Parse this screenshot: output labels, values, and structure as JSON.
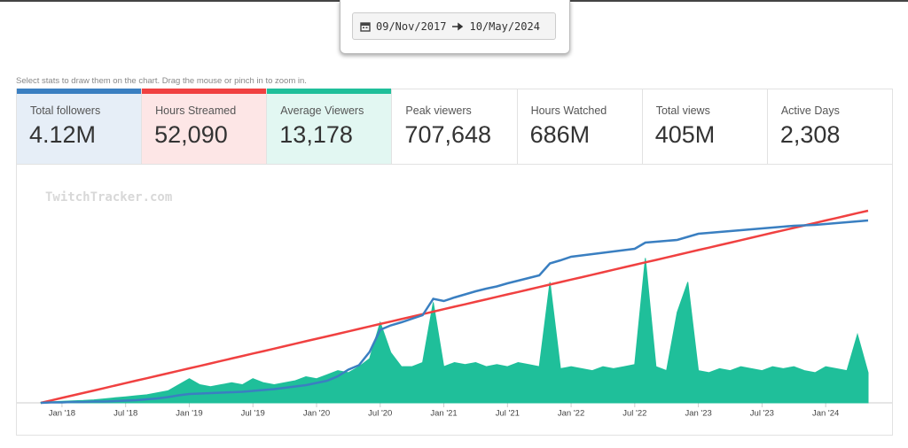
{
  "date_range": {
    "start": "09/Nov/2017",
    "end": "10/May/2024"
  },
  "instructions": "Select stats to draw them on the chart. Drag the mouse or pinch in to zoom in.",
  "stats": [
    {
      "label": "Total followers",
      "value": "4.12M",
      "color": "#3a7fc1",
      "selected": true
    },
    {
      "label": "Hours Streamed",
      "value": "52,090",
      "color": "#f04141",
      "selected": true
    },
    {
      "label": "Average Viewers",
      "value": "13,178",
      "color": "#1fbf9a",
      "selected": true
    },
    {
      "label": "Peak viewers",
      "value": "707,648",
      "selected": false
    },
    {
      "label": "Hours Watched",
      "value": "686M",
      "selected": false
    },
    {
      "label": "Total views",
      "value": "405M",
      "selected": false
    },
    {
      "label": "Active Days",
      "value": "2,308",
      "selected": false
    }
  ],
  "chart_data": {
    "type": "line",
    "watermark": "TwitchTracker.com",
    "x": [
      "2017-11",
      "2017-12",
      "2018-01",
      "2018-02",
      "2018-03",
      "2018-04",
      "2018-05",
      "2018-06",
      "2018-07",
      "2018-08",
      "2018-09",
      "2018-10",
      "2018-11",
      "2018-12",
      "2019-01",
      "2019-02",
      "2019-03",
      "2019-04",
      "2019-05",
      "2019-06",
      "2019-07",
      "2019-08",
      "2019-09",
      "2019-10",
      "2019-11",
      "2019-12",
      "2020-01",
      "2020-02",
      "2020-03",
      "2020-04",
      "2020-05",
      "2020-06",
      "2020-07",
      "2020-08",
      "2020-09",
      "2020-10",
      "2020-11",
      "2020-12",
      "2021-01",
      "2021-02",
      "2021-03",
      "2021-04",
      "2021-05",
      "2021-06",
      "2021-07",
      "2021-08",
      "2021-09",
      "2021-10",
      "2021-11",
      "2021-12",
      "2022-01",
      "2022-02",
      "2022-03",
      "2022-04",
      "2022-05",
      "2022-06",
      "2022-07",
      "2022-08",
      "2022-09",
      "2022-10",
      "2022-11",
      "2022-12",
      "2023-01",
      "2023-02",
      "2023-03",
      "2023-04",
      "2023-05",
      "2023-06",
      "2023-07",
      "2023-08",
      "2023-09",
      "2023-10",
      "2023-11",
      "2023-12",
      "2024-01",
      "2024-02",
      "2024-03",
      "2024-04",
      "2024-05"
    ],
    "xlim": [
      "2017-11",
      "2024-05"
    ],
    "xticks": [
      {
        "value": "2018-01",
        "label": "Jan '18"
      },
      {
        "value": "2018-07",
        "label": "Jul '18"
      },
      {
        "value": "2019-01",
        "label": "Jan '19"
      },
      {
        "value": "2019-07",
        "label": "Jul '19"
      },
      {
        "value": "2020-01",
        "label": "Jan '20"
      },
      {
        "value": "2020-07",
        "label": "Jul '20"
      },
      {
        "value": "2021-01",
        "label": "Jan '21"
      },
      {
        "value": "2021-07",
        "label": "Jul '21"
      },
      {
        "value": "2022-01",
        "label": "Jan '22"
      },
      {
        "value": "2022-07",
        "label": "Jul '22"
      },
      {
        "value": "2023-01",
        "label": "Jan '23"
      },
      {
        "value": "2023-07",
        "label": "Jul '23"
      },
      {
        "value": "2024-01",
        "label": "Jan '24"
      }
    ],
    "series": [
      {
        "type": "area",
        "color": "#1fbf9a",
        "ylim": [
          0,
          110000
        ],
        "values": [
          200,
          500,
          800,
          1000,
          1200,
          1500,
          2000,
          2500,
          3000,
          3500,
          4000,
          5000,
          6000,
          9000,
          12000,
          9000,
          8000,
          9000,
          10000,
          9000,
          12000,
          10000,
          9000,
          10000,
          11000,
          13000,
          12000,
          14000,
          16000,
          15000,
          18000,
          22000,
          40000,
          25000,
          18000,
          18000,
          20000,
          50000,
          18000,
          20000,
          19000,
          20000,
          18000,
          19000,
          18000,
          20000,
          19000,
          18000,
          60000,
          17000,
          18000,
          17000,
          16000,
          18000,
          17000,
          18000,
          19000,
          72000,
          18000,
          16000,
          45000,
          60000,
          16000,
          15000,
          17000,
          16000,
          18000,
          17000,
          16000,
          18000,
          17000,
          18000,
          16000,
          15000,
          18000,
          17000,
          16000,
          34000,
          15000
        ]
      },
      {
        "type": "line",
        "color": "#f04141",
        "ylim": [
          0,
          60000
        ],
        "values": [
          0,
          668,
          1336,
          2004,
          2672,
          3340,
          4008,
          4676,
          5344,
          6012,
          6680,
          7348,
          8016,
          8684,
          9352,
          10020,
          10688,
          11356,
          12024,
          12692,
          13360,
          14028,
          14696,
          15364,
          16032,
          16700,
          17368,
          18036,
          18704,
          19372,
          20040,
          20708,
          21376,
          22044,
          22712,
          23380,
          24048,
          24716,
          25384,
          26052,
          26720,
          27388,
          28056,
          28724,
          29392,
          30060,
          30728,
          31396,
          32064,
          32732,
          33400,
          34068,
          34736,
          35404,
          36072,
          36740,
          37408,
          38076,
          38744,
          39412,
          40080,
          40748,
          41416,
          42084,
          42752,
          43420,
          44088,
          44756,
          45424,
          46092,
          46760,
          47428,
          48096,
          48764,
          49432,
          50100,
          50768,
          51436,
          52090
        ]
      },
      {
        "type": "line",
        "color": "#3a7fc1",
        "ylim": [
          0,
          5
        ],
        "values": [
          0,
          0.01,
          0.01,
          0.02,
          0.02,
          0.03,
          0.03,
          0.04,
          0.05,
          0.06,
          0.08,
          0.1,
          0.13,
          0.17,
          0.2,
          0.21,
          0.22,
          0.23,
          0.24,
          0.25,
          0.27,
          0.29,
          0.31,
          0.34,
          0.37,
          0.4,
          0.45,
          0.5,
          0.6,
          0.75,
          0.85,
          1.15,
          1.65,
          1.75,
          1.82,
          1.9,
          1.98,
          2.35,
          2.3,
          2.38,
          2.45,
          2.52,
          2.58,
          2.63,
          2.7,
          2.76,
          2.82,
          2.88,
          3.15,
          3.22,
          3.3,
          3.33,
          3.36,
          3.39,
          3.42,
          3.45,
          3.48,
          3.62,
          3.64,
          3.66,
          3.68,
          3.75,
          3.82,
          3.84,
          3.86,
          3.88,
          3.9,
          3.92,
          3.94,
          3.96,
          3.98,
          4.0,
          4.01,
          4.02,
          4.04,
          4.06,
          4.08,
          4.1,
          4.12
        ]
      }
    ]
  }
}
